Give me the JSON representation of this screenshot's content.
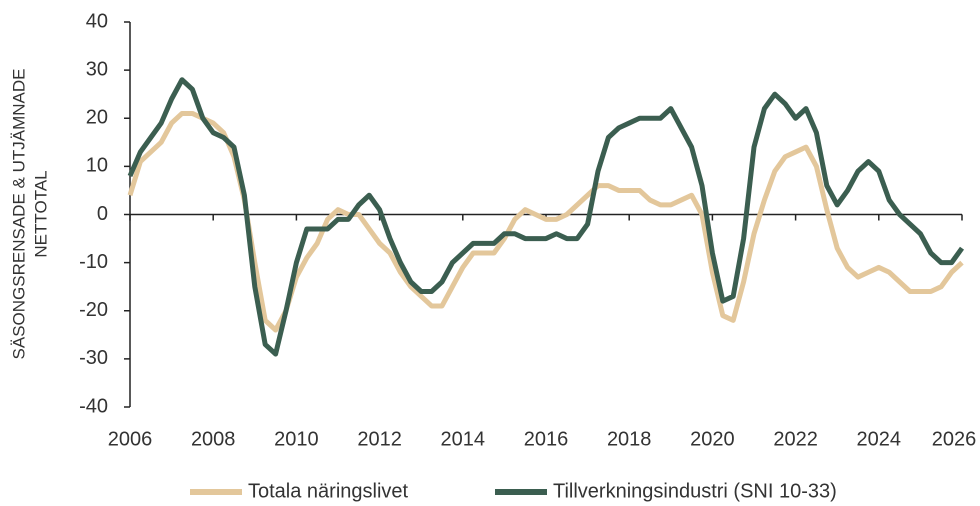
{
  "chart_data": {
    "type": "line",
    "ylabel": [
      "SÄSONGSRENSADE & UTJÄMNADE",
      "NETTOTAL"
    ],
    "x": [
      2006,
      2006.25,
      2006.5,
      2006.75,
      2007,
      2007.25,
      2007.5,
      2007.75,
      2008,
      2008.25,
      2008.5,
      2008.75,
      2009,
      2009.25,
      2009.5,
      2009.75,
      2010,
      2010.25,
      2010.5,
      2010.75,
      2011,
      2011.25,
      2011.5,
      2011.75,
      2012,
      2012.25,
      2012.5,
      2012.75,
      2013,
      2013.25,
      2013.5,
      2013.75,
      2014,
      2014.25,
      2014.5,
      2014.75,
      2015,
      2015.25,
      2015.5,
      2015.75,
      2016,
      2016.25,
      2016.5,
      2016.75,
      2017,
      2017.25,
      2017.5,
      2017.75,
      2018,
      2018.25,
      2018.5,
      2018.75,
      2019,
      2019.25,
      2019.5,
      2019.75,
      2020,
      2020.25,
      2020.5,
      2020.75,
      2021,
      2021.25,
      2021.5,
      2021.75,
      2022,
      2022.25,
      2022.5,
      2022.75,
      2023,
      2023.25,
      2023.5,
      2023.75,
      2024,
      2024.25,
      2024.5,
      2024.75,
      2025,
      2025.25,
      2025.5,
      2025.75,
      2026
    ],
    "series": [
      {
        "name": "Totala näringslivet",
        "color": "#e3c79b",
        "values": [
          4,
          11,
          13,
          15,
          19,
          21,
          21,
          20,
          19,
          17,
          12,
          3,
          -10,
          -22,
          -24,
          -20,
          -13,
          -9,
          -6,
          -1,
          1,
          0,
          0,
          -3,
          -6,
          -8,
          -12,
          -15,
          -17,
          -19,
          -19,
          -15,
          -11,
          -8,
          -8,
          -8,
          -5,
          -1,
          1,
          0,
          -1,
          -1,
          0,
          2,
          4,
          6,
          6,
          5,
          5,
          5,
          3,
          2,
          2,
          3,
          4,
          0,
          -12,
          -21,
          -22,
          -14,
          -4,
          3,
          9,
          12,
          13,
          14,
          10,
          1,
          -7,
          -11,
          -13,
          -12,
          -11,
          -12,
          -14,
          -16,
          -16,
          -16,
          -15,
          -12,
          -10
        ]
      },
      {
        "name": "Tillverkningsindustri (SNI 10-33)",
        "color": "#3b5e50",
        "values": [
          8,
          13,
          16,
          19,
          24,
          28,
          26,
          20,
          17,
          16,
          14,
          4,
          -15,
          -27,
          -29,
          -20,
          -10,
          -3,
          -3,
          -3,
          -1,
          -1,
          2,
          4,
          1,
          -5,
          -10,
          -14,
          -16,
          -16,
          -14,
          -10,
          -8,
          -6,
          -6,
          -6,
          -4,
          -4,
          -5,
          -5,
          -5,
          -4,
          -5,
          -5,
          -2,
          9,
          16,
          18,
          19,
          20,
          20,
          20,
          22,
          18,
          14,
          6,
          -8,
          -18,
          -17,
          -5,
          14,
          22,
          25,
          23,
          20,
          22,
          17,
          6,
          2,
          5,
          9,
          11,
          9,
          3,
          0,
          -2,
          -4,
          -8,
          -10,
          -10,
          -7
        ]
      }
    ],
    "xlim": [
      2006,
      2026
    ],
    "xticks": [
      2006,
      2008,
      2010,
      2012,
      2014,
      2016,
      2018,
      2020,
      2022,
      2024,
      2026
    ],
    "ylim": [
      -40,
      40
    ],
    "yticks": [
      -40,
      -30,
      -20,
      -10,
      0,
      10,
      20,
      30,
      40
    ],
    "legend": "bottom",
    "grid": false
  }
}
